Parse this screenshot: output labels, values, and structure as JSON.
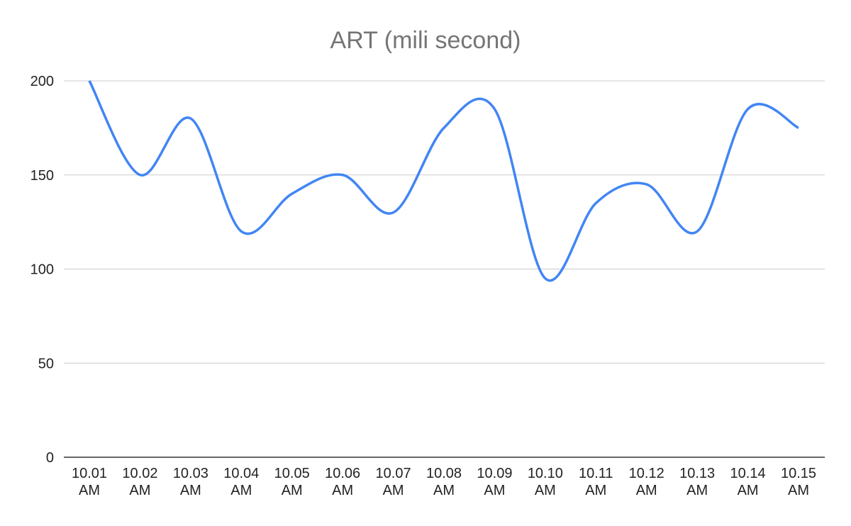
{
  "chart_data": {
    "type": "line",
    "title": "ART (mili second)",
    "xlabel": "",
    "ylabel": "",
    "categories": [
      "10.01 AM",
      "10.02 AM",
      "10.03 AM",
      "10.04 AM",
      "10.05 AM",
      "10.06 AM",
      "10.07 AM",
      "10.08 AM",
      "10.09 AM",
      "10.10 AM",
      "10.11 AM",
      "10.12 AM",
      "10.13 AM",
      "10.14 AM",
      "10.15 AM"
    ],
    "values": [
      200,
      150,
      180,
      120,
      140,
      150,
      130,
      175,
      185,
      95,
      135,
      145,
      120,
      185,
      175
    ],
    "ylim": [
      0,
      200
    ],
    "yticks": [
      "0",
      "50",
      "100",
      "150",
      "200"
    ],
    "grid": true,
    "smooth": true,
    "legend": "none",
    "colors": {
      "line": "#4285f4",
      "grid": "#cccccc",
      "axis": "#333333"
    }
  }
}
